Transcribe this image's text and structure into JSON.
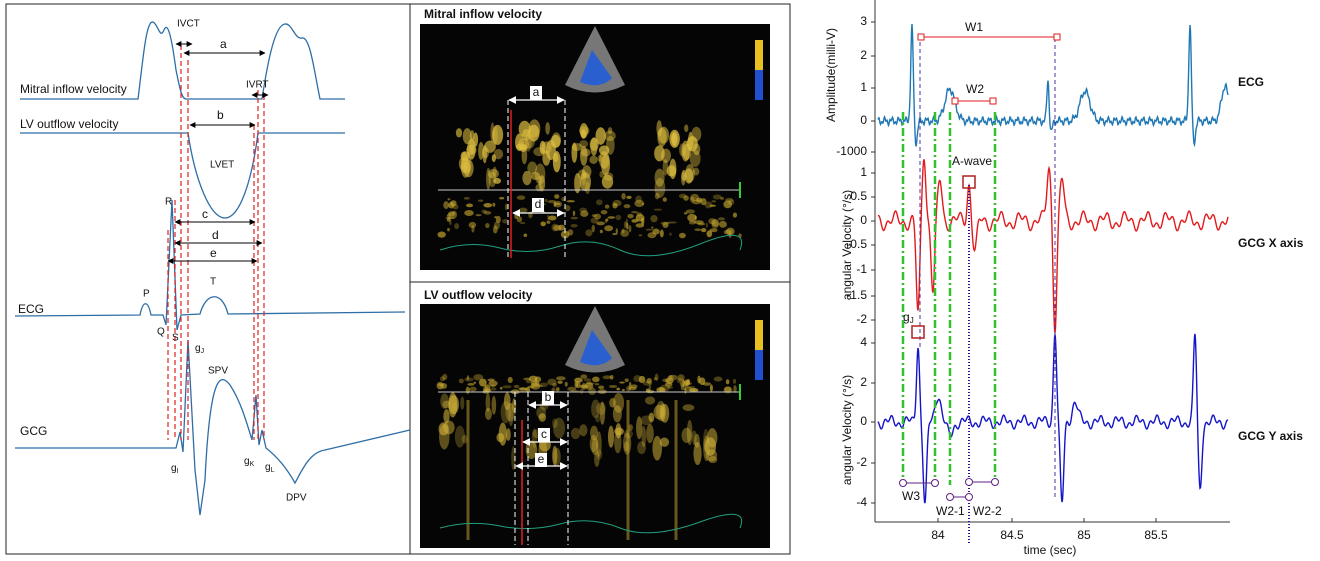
{
  "schematic": {
    "mitral_label": "Mitral inflow velocity",
    "lv_label": "LV outflow velocity",
    "ivct": "IVCT",
    "ivrt": "IVRT",
    "a": "a",
    "b": "b",
    "c": "c",
    "d": "d",
    "e": "e",
    "lvet": "LVET",
    "r": "R",
    "p": "P",
    "t": "T",
    "q": "Q",
    "s": "S",
    "ecg": "ECG",
    "gcg": "GCG",
    "spv": "SPV",
    "dpv": "DPV",
    "g_j": {
      "base": "g",
      "sub": "J"
    },
    "g_i": {
      "base": "g",
      "sub": "I"
    },
    "g_k": {
      "base": "g",
      "sub": "K"
    },
    "g_l": {
      "base": "g",
      "sub": "L"
    }
  },
  "echo": [
    {
      "title": "Mitral inflow velocity",
      "arrows": [
        "a",
        "d"
      ]
    },
    {
      "title": "LV outflow velocity",
      "arrows": [
        "b",
        "c",
        "e"
      ]
    }
  ],
  "plot": {
    "panels": [
      {
        "ylabel": "Amplitude(milli-V)",
        "yticks": [
          3,
          2,
          1,
          0,
          -1000
        ],
        "name": "ECG"
      },
      {
        "ylabel": "angular Velocity (°/s)",
        "yticks": [
          1,
          0.5,
          0,
          -0.5,
          -1,
          -1.5,
          -2
        ],
        "name": "GCG X axis"
      },
      {
        "ylabel": "angular Velocity (°/s)",
        "yticks": [
          4,
          2,
          0,
          -2,
          -4
        ],
        "name": "GCG Y axis"
      }
    ],
    "xticks": [
      84,
      84.5,
      85,
      85.5
    ],
    "xlabel": "time (sec)",
    "annotations": {
      "w1": "W1",
      "w2": "W2",
      "a_wave": "A-wave",
      "g_j": {
        "base": "g",
        "sub": "J"
      },
      "w3": "W3",
      "w2_1": "W2-1",
      "w2_2": "W2-2"
    }
  }
}
